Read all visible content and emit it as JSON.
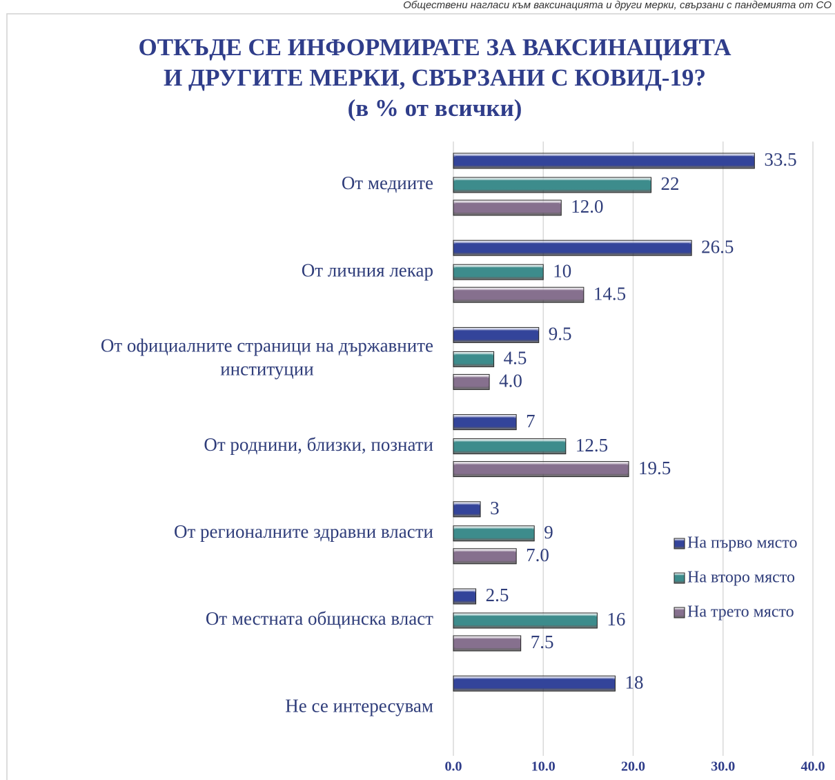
{
  "header": "Обществени нагласи към ваксинацията и други мерки, свързани с пандемията от CO",
  "chart_data": {
    "type": "bar",
    "orientation": "horizontal",
    "title": [
      "ОТКЪДЕ СЕ ИНФОРМИРАТЕ ЗА ВАКСИНАЦИЯТА",
      "И ДРУГИТЕ МЕРКИ, СВЪРЗАНИ С КОВИД-19?",
      "(в % от всички)"
    ],
    "categories": [
      "От медиите",
      "От личния лекар",
      "От официалните страници на държавните институции",
      "От роднини, близки, познати",
      "От регионалните здравни власти",
      "От местната общинска власт",
      "Не се интересувам"
    ],
    "series": [
      {
        "name": "На първо място",
        "color": "#34449a",
        "values": [
          33.5,
          26.5,
          9.5,
          7,
          3,
          2.5,
          18
        ]
      },
      {
        "name": "На второ място",
        "color": "#3d8c8c",
        "values": [
          22,
          10,
          4.5,
          12.5,
          9,
          16,
          null
        ]
      },
      {
        "name": "На трето място",
        "color": "#86708e",
        "values": [
          12.0,
          14.5,
          4.0,
          19.5,
          7.0,
          7.5,
          null
        ],
        "value_labels": [
          "12.0",
          "14.5",
          "4.0",
          "19.5",
          "7.0",
          "7.5",
          null
        ]
      }
    ],
    "xlim": [
      0,
      40
    ],
    "xticks": [
      {
        "value": 0,
        "label": "0.0"
      },
      {
        "value": 10,
        "label": "10.0"
      },
      {
        "value": 20,
        "label": "20.0"
      },
      {
        "value": 30,
        "label": "30.0"
      },
      {
        "value": 40,
        "label": "40.0"
      }
    ],
    "grid": true,
    "legend": "right"
  }
}
